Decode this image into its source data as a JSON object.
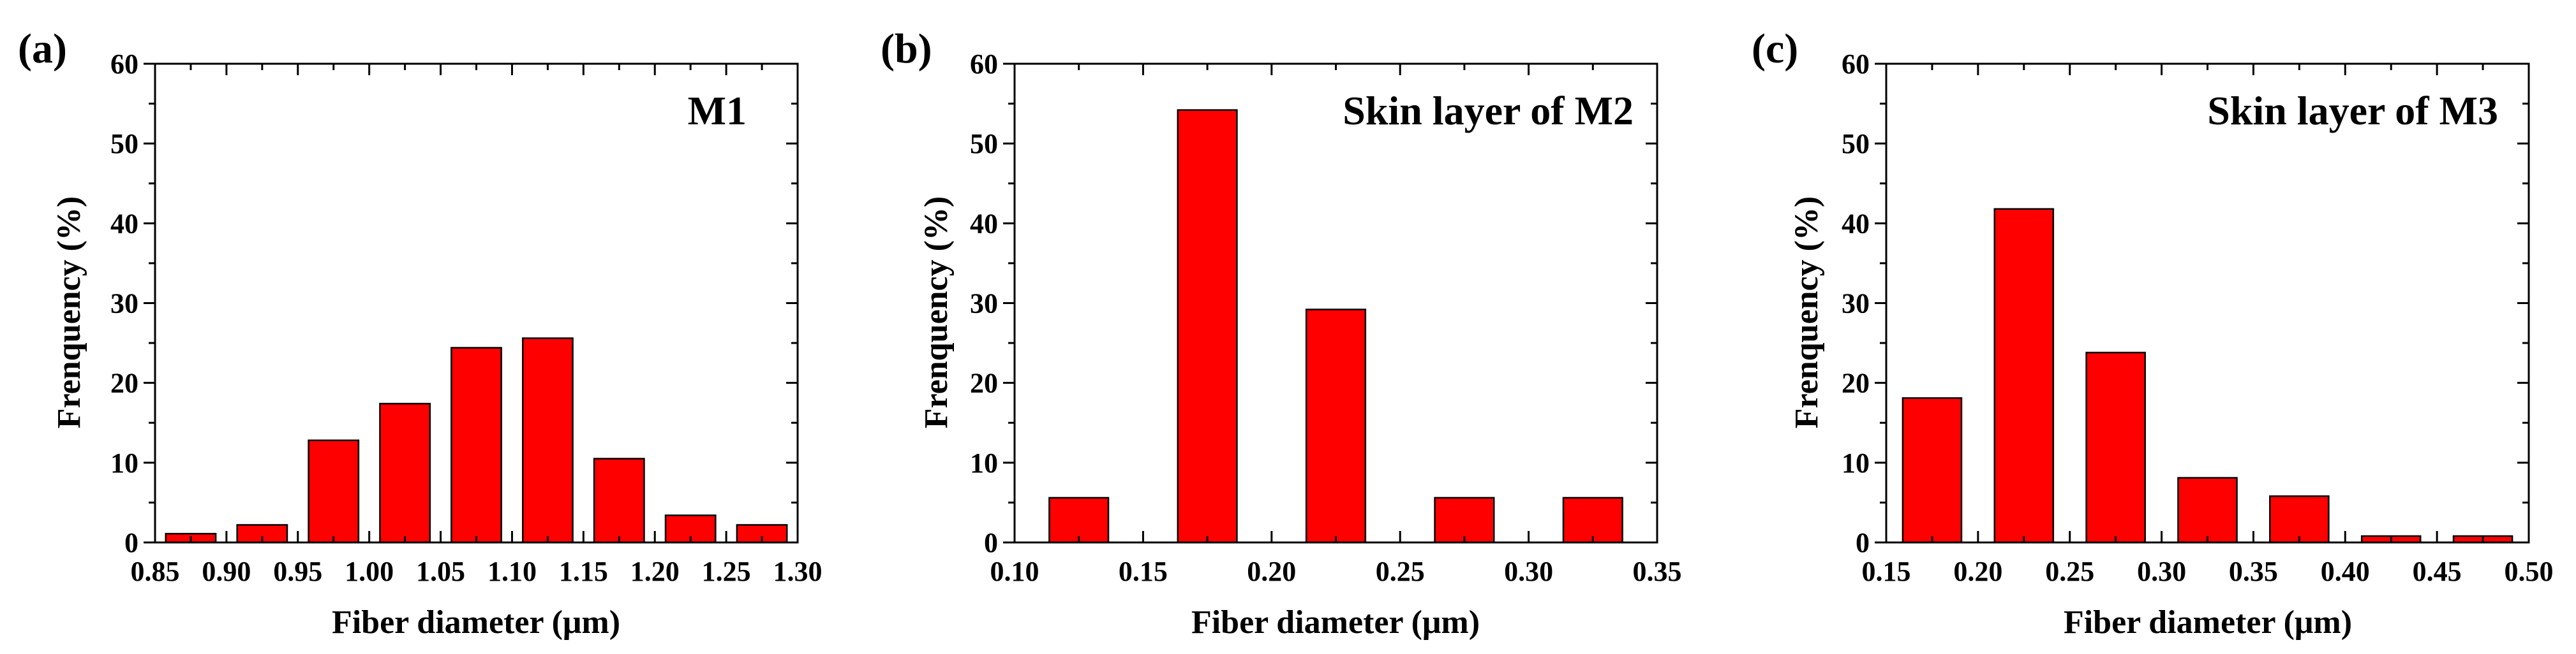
{
  "colors": {
    "bar_fill": "#ff0000",
    "bar_edge": "#000000",
    "axis": "#000000"
  },
  "chart_data": [
    {
      "type": "bar",
      "panel_label": "(a)",
      "legend": "M1",
      "xlabel": "Fiber diameter (μm)",
      "ylabel": "Frenquency (%)",
      "xlim": [
        0.85,
        1.3
      ],
      "ylim": [
        0,
        60
      ],
      "xticks": [
        0.85,
        0.9,
        0.95,
        1.0,
        1.05,
        1.1,
        1.15,
        1.2,
        1.25,
        1.3
      ],
      "xtick_labels": [
        "0.85",
        "0.90",
        "0.95",
        "1.00",
        "1.05",
        "1.10",
        "1.15",
        "1.20",
        "1.25",
        "1.30"
      ],
      "yticks": [
        0,
        10,
        20,
        30,
        40,
        50,
        60
      ],
      "ytick_labels": [
        "0",
        "10",
        "20",
        "30",
        "40",
        "50",
        "60"
      ],
      "bin_centers": [
        0.875,
        0.925,
        0.975,
        1.025,
        1.075,
        1.125,
        1.175,
        1.225,
        1.275
      ],
      "bin_width": 0.035,
      "values": [
        1.1,
        2.2,
        12.8,
        17.4,
        24.4,
        25.6,
        10.5,
        3.4,
        2.2
      ]
    },
    {
      "type": "bar",
      "panel_label": "(b)",
      "legend": "Skin layer of M2",
      "xlabel": "Fiber diameter (μm)",
      "ylabel": "Frenquency (%)",
      "xlim": [
        0.1,
        0.35
      ],
      "ylim": [
        0,
        60
      ],
      "xticks": [
        0.1,
        0.15,
        0.2,
        0.25,
        0.3,
        0.35
      ],
      "xtick_labels": [
        "0.10",
        "0.15",
        "0.20",
        "0.25",
        "0.30",
        "0.35"
      ],
      "yticks": [
        0,
        10,
        20,
        30,
        40,
        50,
        60
      ],
      "ytick_labels": [
        "0",
        "10",
        "20",
        "30",
        "40",
        "50",
        "60"
      ],
      "bin_centers": [
        0.125,
        0.175,
        0.225,
        0.275,
        0.325
      ],
      "bin_width": 0.023,
      "values": [
        5.6,
        54.2,
        29.2,
        5.6,
        5.6
      ]
    },
    {
      "type": "bar",
      "panel_label": "(c)",
      "legend": "Skin layer of M3",
      "xlabel": "Fiber diameter (μm)",
      "ylabel": "Frenquency (%)",
      "xlim": [
        0.15,
        0.5
      ],
      "ylim": [
        0,
        60
      ],
      "xticks": [
        0.15,
        0.2,
        0.25,
        0.3,
        0.35,
        0.4,
        0.45,
        0.5
      ],
      "xtick_labels": [
        "0.15",
        "0.20",
        "0.25",
        "0.30",
        "0.35",
        "0.40",
        "0.45",
        "0.50"
      ],
      "yticks": [
        0,
        10,
        20,
        30,
        40,
        50,
        60
      ],
      "ytick_labels": [
        "0",
        "10",
        "20",
        "30",
        "40",
        "50",
        "60"
      ],
      "bin_centers": [
        0.175,
        0.225,
        0.275,
        0.325,
        0.375,
        0.425,
        0.475
      ],
      "bin_width": 0.032,
      "values": [
        18.1,
        41.8,
        23.8,
        8.1,
        5.8,
        0.8,
        0.8
      ]
    }
  ]
}
